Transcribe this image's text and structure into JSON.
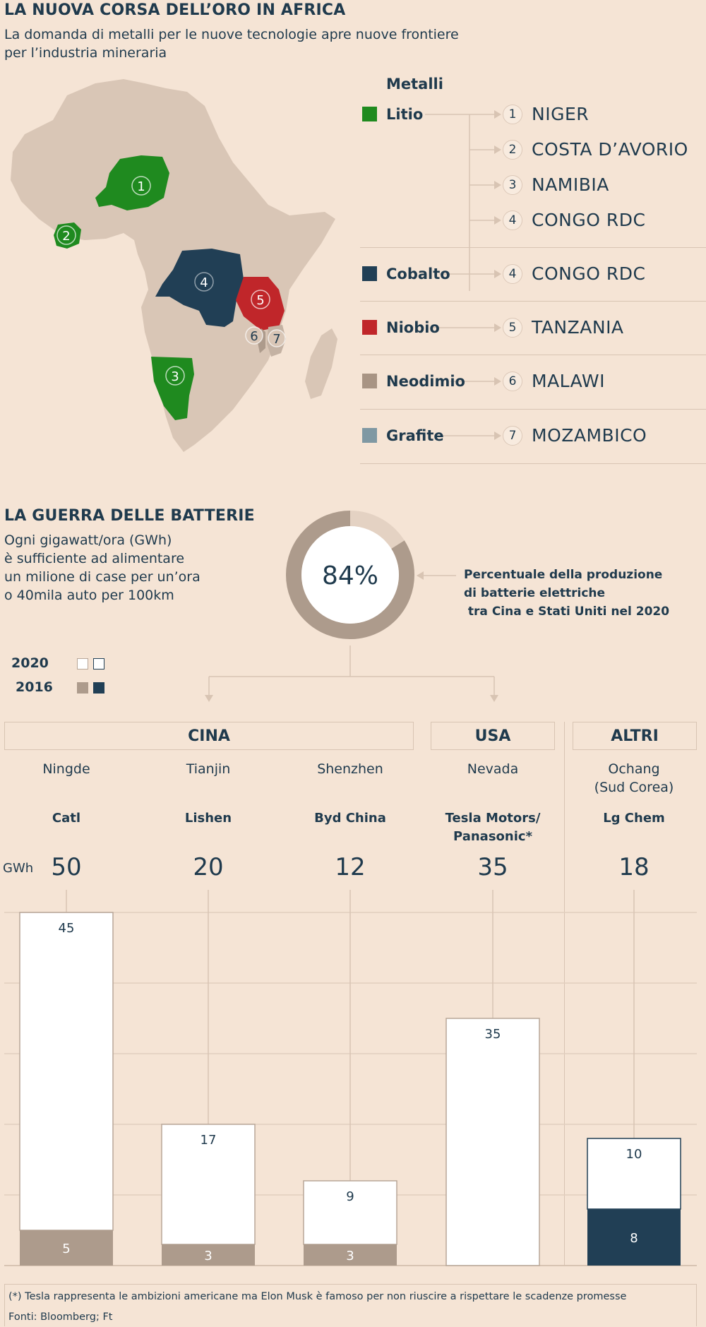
{
  "header": {
    "title": "LA NUOVA CORSA DELL’ORO IN AFRICA",
    "subtitle_line1": "La domanda di metalli per le nuove tecnologie apre nuove frontiere",
    "subtitle_line2": "per l’industria mineraria"
  },
  "metals": {
    "heading": "Metalli",
    "items": [
      {
        "name": "Litio",
        "color": "#1f8a1f",
        "countries": [
          {
            "num": "1",
            "name": "NIGER"
          },
          {
            "num": "2",
            "name": "COSTA D’AVORIO"
          },
          {
            "num": "3",
            "name": "NAMIBIA"
          },
          {
            "num": "4",
            "name": "CONGO RDC"
          }
        ]
      },
      {
        "name": "Cobalto",
        "color": "#213f55",
        "countries": [
          {
            "num": "4",
            "name": "CONGO RDC"
          }
        ]
      },
      {
        "name": "Niobio",
        "color": "#c0262a",
        "countries": [
          {
            "num": "5",
            "name": "TANZANIA"
          }
        ]
      },
      {
        "name": "Neodimio",
        "color": "#a89484",
        "countries": [
          {
            "num": "6",
            "name": "MALAWI"
          }
        ]
      },
      {
        "name": "Grafite",
        "color": "#7f98a3",
        "countries": [
          {
            "num": "7",
            "name": "MOZAMBICO"
          }
        ]
      }
    ]
  },
  "map": {
    "labels": [
      "1",
      "2",
      "3",
      "4",
      "5",
      "6",
      "7"
    ]
  },
  "batteries": {
    "title": "LA GUERRA DELLE BATTERIE",
    "desc_lines": [
      "Ogni gigawatt/ora (GWh)",
      "è sufficiente ad alimentare",
      "un milione di case per un’ora",
      "o 40mila auto per 100km"
    ],
    "donut_value": 84,
    "donut_label": "84%",
    "donut_desc_lines": [
      "Percentuale della produzione",
      "di batterie elettriche",
      " tra Cina e Stati Uniti nel 2020"
    ]
  },
  "legend": {
    "y2020": "2020",
    "y2016": "2016"
  },
  "regions": [
    {
      "name": "CINA"
    },
    {
      "name": "USA"
    },
    {
      "name": "ALTRI"
    }
  ],
  "chart_data": {
    "type": "bar",
    "unit_label": "GWh",
    "categories": [
      "Ningde",
      "Tianjin",
      "Shenzhen",
      "Nevada",
      "Ochang"
    ],
    "city_lines": [
      [
        "Ningde"
      ],
      [
        "Tianjin"
      ],
      [
        "Shenzhen"
      ],
      [
        "Nevada"
      ],
      [
        "Ochang",
        "(Sud Corea)"
      ]
    ],
    "companies": [
      [
        "Catl"
      ],
      [
        "Lishen"
      ],
      [
        "Byd China"
      ],
      [
        "Tesla Motors/",
        "Panasonic*"
      ],
      [
        "Lg Chem"
      ]
    ],
    "totals_2020": [
      "50",
      "20",
      "12",
      "35",
      "18"
    ],
    "series": [
      {
        "name": "2016",
        "values": [
          5,
          3,
          3,
          0,
          8
        ]
      },
      {
        "name": "2020",
        "values": [
          45,
          17,
          9,
          35,
          10
        ]
      }
    ],
    "segment_labels_2016": [
      "5",
      "3",
      "3",
      "",
      "8"
    ],
    "segment_labels_2020": [
      "45",
      "17",
      "9",
      "35",
      "10"
    ],
    "colors_2016": [
      "#ad9b8c",
      "#ad9b8c",
      "#ad9b8c",
      "#ad9b8c",
      "#213f55"
    ],
    "ylim": [
      0,
      50
    ]
  },
  "footer": {
    "note": "(*) Tesla rappresenta le ambizioni americane ma Elon Musk è famoso per non riuscire a rispettare le scadenze promesse",
    "sources": "Fonti: Bloomberg; Ft"
  }
}
